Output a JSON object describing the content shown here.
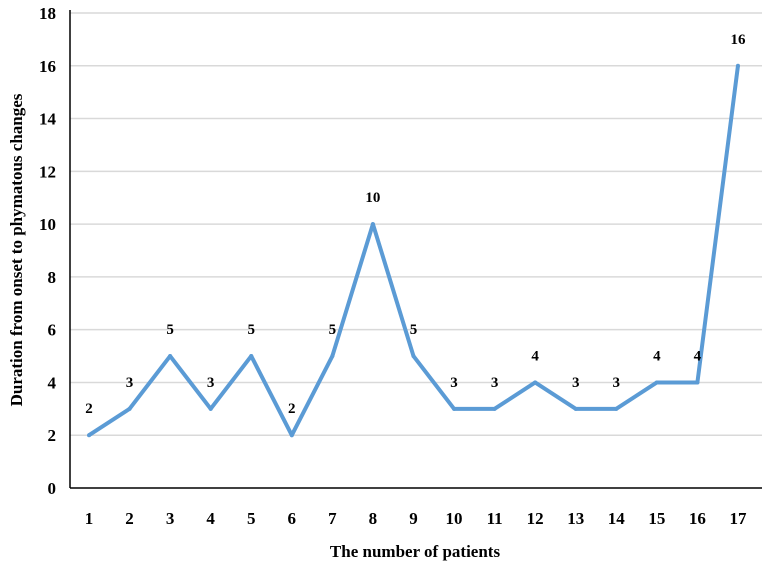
{
  "chart_data": {
    "type": "line",
    "title": "",
    "xlabel": "The number of patients",
    "ylabel": "Duration from onset to phymatous changes",
    "categories": [
      "1",
      "2",
      "3",
      "4",
      "5",
      "6",
      "7",
      "8",
      "9",
      "10",
      "11",
      "12",
      "13",
      "14",
      "15",
      "16",
      "17"
    ],
    "values": [
      2,
      3,
      5,
      3,
      5,
      2,
      5,
      10,
      5,
      3,
      3,
      4,
      3,
      3,
      4,
      4,
      16
    ],
    "data_labels": [
      "2",
      "3",
      "5",
      "3",
      "5",
      "2",
      "5",
      "10",
      "5",
      "3",
      "3",
      "4",
      "3",
      "3",
      "4",
      "4",
      "16"
    ],
    "ylim": [
      0,
      18
    ],
    "yticks": [
      "0",
      "2",
      "4",
      "6",
      "8",
      "10",
      "12",
      "14",
      "16",
      "18"
    ],
    "grid": true,
    "legend": "none",
    "line_color": "#5b9bd5"
  }
}
